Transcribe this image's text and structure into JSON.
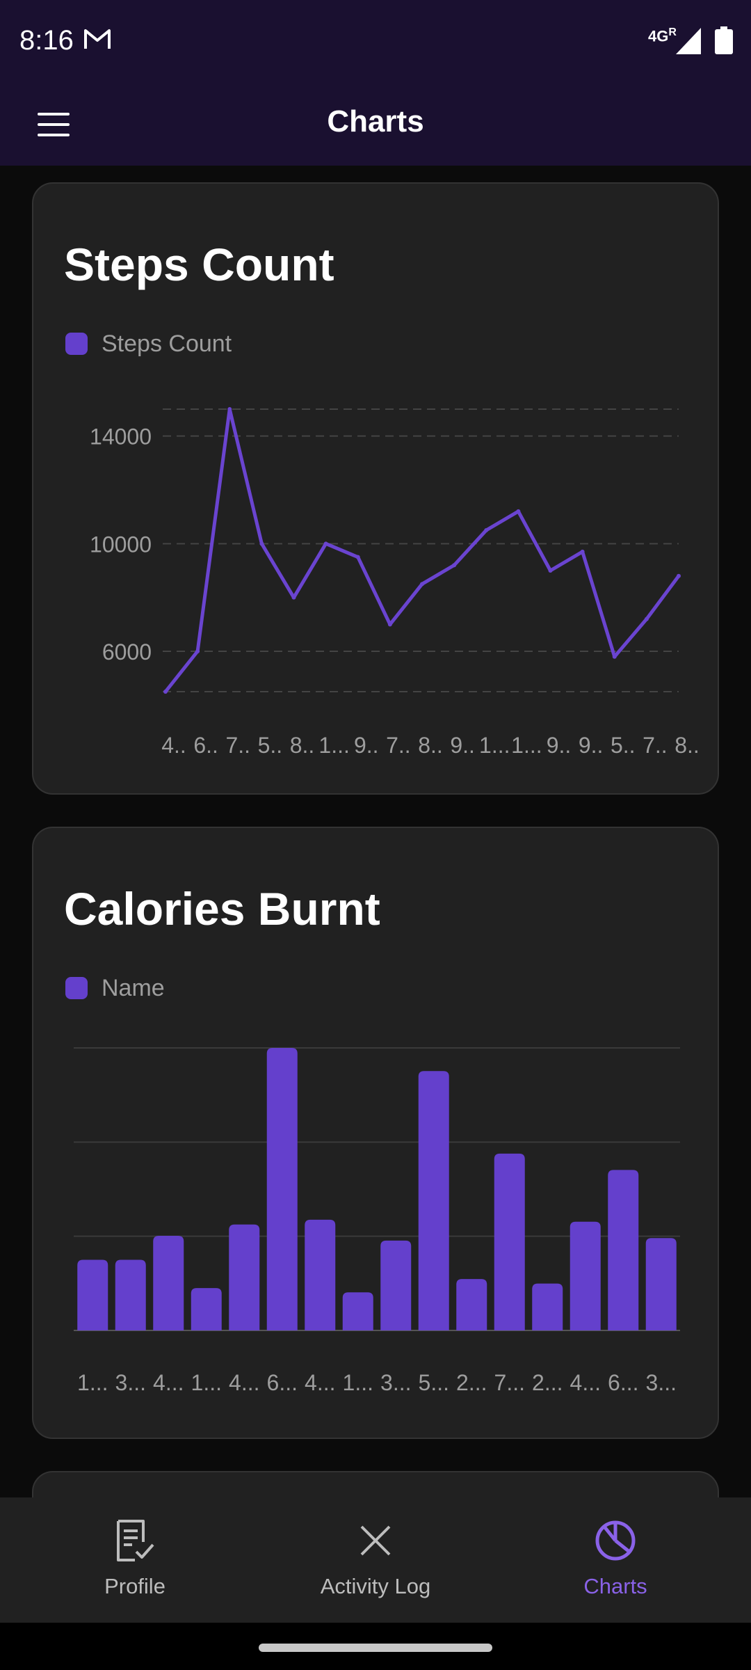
{
  "status_bar": {
    "time": "8:16",
    "network": "4G",
    "network_sup": "R"
  },
  "app_bar": {
    "title": "Charts"
  },
  "cards": [
    {
      "title": "Steps Count",
      "legend": "Steps Count"
    },
    {
      "title": "Calories Burnt",
      "legend": "Name"
    }
  ],
  "chart_data": [
    {
      "type": "line",
      "title": "Steps Count",
      "series": [
        {
          "name": "Steps Count",
          "values": [
            4500,
            6000,
            15000,
            10000,
            8000,
            10000,
            9500,
            7000,
            8500,
            9200,
            10500,
            11200,
            9000,
            9700,
            5800,
            7200,
            8800
          ]
        }
      ],
      "x": [
        "4..",
        "6..",
        "7..",
        "5..",
        "8..",
        "1...",
        "9..",
        "7..",
        "8..",
        "9..",
        "1...",
        "1...",
        "9..",
        "9..",
        "5..",
        "7..",
        "8.."
      ],
      "yticks": [
        "14000",
        "10000",
        "6000"
      ],
      "ytick_values": [
        14000,
        10000,
        6000
      ],
      "ylim": [
        4500,
        15000
      ],
      "grid": true,
      "legend_position": "top-left",
      "color": "#6a44d0"
    },
    {
      "type": "bar",
      "title": "Calories Burnt",
      "series": [
        {
          "name": "Name",
          "values": [
            0.25,
            0.25,
            0.335,
            0.15,
            0.375,
            1.0,
            0.392,
            0.135,
            0.318,
            0.918,
            0.182,
            0.626,
            0.166,
            0.385,
            0.568,
            0.327
          ]
        }
      ],
      "categories": [
        "1...",
        "3...",
        "4...",
        "1...",
        "4...",
        "6...",
        "4...",
        "1...",
        "3...",
        "5...",
        "2...",
        "7...",
        "2...",
        "4...",
        "6...",
        "3..."
      ],
      "ylim": [
        0,
        1
      ],
      "grid": true,
      "legend_position": "top-left",
      "color": "#6440cc"
    }
  ],
  "bottom_nav": {
    "items": [
      {
        "label": "Profile",
        "icon": "profile-document-icon",
        "active": false
      },
      {
        "label": "Activity Log",
        "icon": "close-x-icon",
        "active": false
      },
      {
        "label": "Charts",
        "icon": "pie-chart-icon",
        "active": true
      }
    ]
  },
  "colors": {
    "app_bar": "#1a1030",
    "card": "#212121",
    "accent": "#6440cc",
    "active_nav": "#8a62e8"
  }
}
